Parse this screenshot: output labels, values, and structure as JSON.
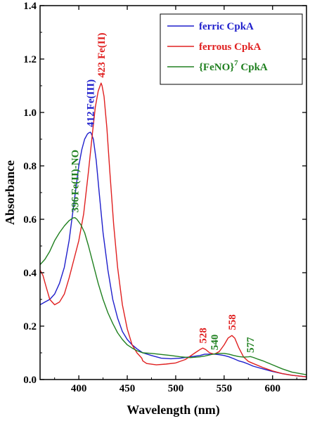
{
  "chart_data": {
    "type": "line",
    "xlabel": "Wavelength (nm)",
    "ylabel": "Absorbance",
    "xlim": [
      360,
      635
    ],
    "ylim": [
      0.0,
      1.4
    ],
    "x_ticks": [
      "400",
      "450",
      "500",
      "550",
      "600"
    ],
    "y_ticks": [
      "0.0",
      "0.2",
      "0.4",
      "0.6",
      "0.8",
      "1.0",
      "1.2",
      "1.4"
    ],
    "grid": false,
    "legend_position": "top-right",
    "legend": [
      {
        "label": "ferric CpkA",
        "color": "#1f1fcc"
      },
      {
        "label": "ferrous CpkA",
        "color": "#e02020"
      },
      {
        "label_main": "{FeNO}",
        "label_sup": "7",
        "label_tail": " CpkA",
        "color": "#208020"
      }
    ],
    "series": [
      {
        "name": "ferric CpkA",
        "color": "#1f1fcc",
        "x": [
          360,
          365,
          370,
          375,
          380,
          385,
          390,
          395,
          400,
          403,
          406,
          409,
          411,
          412,
          413,
          415,
          418,
          421,
          425,
          430,
          435,
          440,
          445,
          450,
          455,
          460,
          466,
          475,
          485,
          495,
          505,
          515,
          525,
          530,
          535,
          540,
          545,
          550,
          555,
          560,
          565,
          570,
          575,
          580,
          590,
          600,
          610,
          620,
          635
        ],
        "y": [
          0.28,
          0.29,
          0.3,
          0.32,
          0.36,
          0.42,
          0.52,
          0.66,
          0.8,
          0.86,
          0.9,
          0.92,
          0.925,
          0.926,
          0.92,
          0.9,
          0.82,
          0.7,
          0.55,
          0.41,
          0.3,
          0.23,
          0.18,
          0.15,
          0.13,
          0.115,
          0.1,
          0.09,
          0.08,
          0.078,
          0.08,
          0.085,
          0.09,
          0.095,
          0.095,
          0.095,
          0.093,
          0.09,
          0.085,
          0.078,
          0.07,
          0.065,
          0.058,
          0.05,
          0.04,
          0.03,
          0.022,
          0.016,
          0.01
        ]
      },
      {
        "name": "ferrous CpkA",
        "color": "#e02020",
        "x": [
          360,
          363,
          366,
          370,
          375,
          380,
          385,
          390,
          395,
          400,
          405,
          410,
          414,
          417,
          420,
          422,
          423,
          424,
          426,
          429,
          432,
          436,
          440,
          445,
          450,
          455,
          460,
          465,
          466,
          470,
          480,
          490,
          500,
          510,
          520,
          525,
          528,
          531,
          535,
          540,
          545,
          550,
          554,
          558,
          561,
          565,
          570,
          575,
          580,
          590,
          600,
          610,
          620,
          635
        ],
        "y": [
          0.41,
          0.39,
          0.35,
          0.3,
          0.28,
          0.29,
          0.32,
          0.38,
          0.45,
          0.52,
          0.62,
          0.78,
          0.92,
          1.02,
          1.08,
          1.1,
          1.11,
          1.1,
          1.06,
          0.94,
          0.78,
          0.58,
          0.42,
          0.28,
          0.19,
          0.13,
          0.1,
          0.08,
          0.07,
          0.06,
          0.055,
          0.058,
          0.062,
          0.075,
          0.1,
          0.112,
          0.118,
          0.112,
          0.1,
          0.095,
          0.105,
          0.13,
          0.155,
          0.165,
          0.155,
          0.12,
          0.085,
          0.068,
          0.06,
          0.045,
          0.032,
          0.022,
          0.016,
          0.01
        ]
      },
      {
        "name": "{FeNO}7 CpkA",
        "color": "#208020",
        "x": [
          360,
          365,
          370,
          375,
          380,
          385,
          390,
          394,
          396,
          398,
          402,
          406,
          410,
          415,
          420,
          425,
          430,
          435,
          440,
          445,
          450,
          455,
          460,
          466,
          475,
          485,
          495,
          505,
          515,
          525,
          530,
          535,
          540,
          545,
          550,
          555,
          560,
          565,
          570,
          575,
          577,
          580,
          585,
          590,
          600,
          610,
          620,
          635
        ],
        "y": [
          0.43,
          0.45,
          0.48,
          0.52,
          0.55,
          0.575,
          0.595,
          0.605,
          0.606,
          0.6,
          0.58,
          0.55,
          0.5,
          0.43,
          0.36,
          0.3,
          0.25,
          0.21,
          0.175,
          0.15,
          0.13,
          0.118,
          0.108,
          0.1,
          0.098,
          0.094,
          0.09,
          0.085,
          0.082,
          0.085,
          0.088,
          0.092,
          0.096,
          0.098,
          0.098,
          0.095,
          0.09,
          0.086,
          0.084,
          0.085,
          0.086,
          0.083,
          0.076,
          0.07,
          0.055,
          0.04,
          0.028,
          0.018
        ]
      }
    ],
    "annotations": [
      {
        "text": "412",
        "x": 412,
        "y": 0.945,
        "color": "#1f1fcc"
      },
      {
        "text": "Fe(III)",
        "x": 412,
        "y": 1.01,
        "color": "#1f1fcc"
      },
      {
        "text": "423",
        "x": 423,
        "y": 1.13,
        "color": "#e02020"
      },
      {
        "text": "Fe(II)",
        "x": 423,
        "y": 1.2,
        "color": "#e02020"
      },
      {
        "text": "396",
        "x": 396,
        "y": 0.625,
        "color": "#208020"
      },
      {
        "text": "Fe(II)-NO",
        "x": 396,
        "y": 0.69,
        "color": "#208020"
      },
      {
        "text": "528",
        "x": 528,
        "y": 0.135,
        "color": "#e02020"
      },
      {
        "text": "558",
        "x": 558,
        "y": 0.185,
        "color": "#e02020"
      },
      {
        "text": "540",
        "x": 540,
        "y": 0.11,
        "color": "#208020"
      },
      {
        "text": "577",
        "x": 577,
        "y": 0.1,
        "color": "#208020"
      }
    ]
  }
}
